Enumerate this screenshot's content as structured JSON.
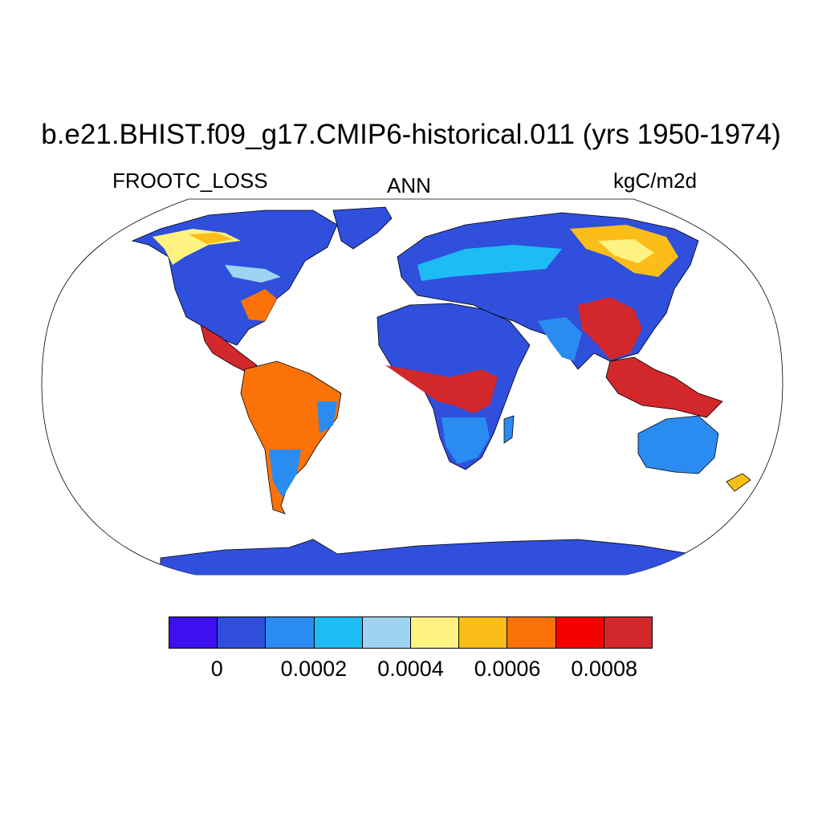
{
  "title": "b.e21.BHIST.f09_g17.CMIP6-historical.011 (yrs 1950-1974)",
  "variable": "FROOTC_LOSS",
  "season": "ANN",
  "units": "kgC/m2d",
  "colorbar": {
    "colors": [
      "#3c10f0",
      "#2f4fdc",
      "#2a8cf0",
      "#1ebcf5",
      "#9fd4f0",
      "#fdf282",
      "#fbbd17",
      "#fb7209",
      "#f60000",
      "#d2282c"
    ],
    "tick_labels": [
      "0",
      "0.0002",
      "0.0004",
      "0.0006",
      "0.0008"
    ]
  },
  "palette": {
    "ocean": "#ffffff",
    "outline": "#000000"
  }
}
